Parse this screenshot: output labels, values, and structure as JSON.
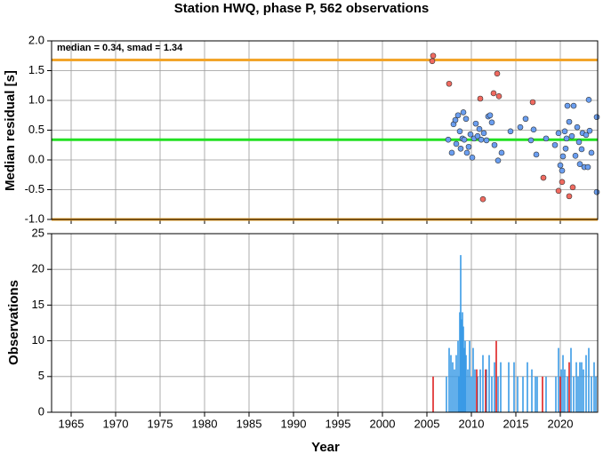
{
  "chart_data": [
    {
      "type": "scatter",
      "title": "Station HWQ, phase P, 562 observations",
      "ylabel": "Median residual [s]",
      "annotation": "median = 0.34, smad = 1.34",
      "xlim": [
        1962.8,
        2024.2
      ],
      "xticks": [
        1965,
        1970,
        1975,
        1980,
        1985,
        1990,
        1995,
        2000,
        2005,
        2010,
        2015,
        2020
      ],
      "ylim": [
        -1.0,
        2.0
      ],
      "yticks": [
        {
          "value": -1.0,
          "label": "-1.0"
        },
        -0.5,
        {
          "value": 0.0,
          "label": "0.0"
        },
        0.5,
        {
          "value": 1.0,
          "label": "1.0"
        },
        1.5,
        {
          "value": 2.0,
          "label": "2.0"
        }
      ],
      "grid": true,
      "hlines": [
        {
          "value": 1.68,
          "color": "#f2a52a"
        },
        {
          "value": 0.34,
          "color": "#22e022"
        },
        {
          "value": -1.0,
          "color": "#f2a52a"
        }
      ],
      "series": [
        {
          "color": "#6a9ef0",
          "x": [
            2007.4,
            2007.8,
            2008,
            2008.2,
            2008.3,
            2008.5,
            2008.7,
            2008.8,
            2009,
            2009.1,
            2009.2,
            2009.4,
            2009.5,
            2009.7,
            2009.9,
            2010.1,
            2010.3,
            2010.5,
            2010.7,
            2010.9,
            2011.1,
            2011.4,
            2011.7,
            2011.9,
            2012.1,
            2012.3,
            2012.6,
            2013,
            2013.4,
            2014.4,
            2015.5,
            2016.1,
            2016.7,
            2017,
            2017.3,
            2018.4,
            2019.4,
            2019.8,
            2020,
            2020.2,
            2020.3,
            2020.5,
            2020.6,
            2020.7,
            2020.8,
            2021,
            2021.3,
            2021.5,
            2021.7,
            2021.9,
            2022.1,
            2022.2,
            2022.4,
            2022.5,
            2022.7,
            2022.9,
            2023.1,
            2023.2,
            2023.3,
            2023.5,
            2024.1,
            2024.1
          ],
          "values": [
            0.34,
            0.12,
            0.6,
            0.67,
            0.27,
            0.75,
            0.48,
            0.19,
            0.36,
            0.8,
            0.34,
            0.69,
            0.12,
            0.22,
            0.43,
            0.04,
            0.36,
            0.61,
            0.4,
            0.52,
            0.34,
            0.45,
            0.33,
            0.73,
            0.75,
            0.63,
            0.25,
            -0.01,
            0.12,
            0.48,
            0.55,
            0.69,
            0.33,
            0.51,
            0.09,
            0.36,
            0.25,
            0.45,
            -0.09,
            -0.18,
            0.06,
            0.48,
            0.19,
            0.36,
            0.91,
            0.64,
            0.4,
            0.91,
            0.07,
            0.55,
            0.3,
            -0.07,
            0.18,
            0.45,
            -0.12,
            0.42,
            -0.12,
            1.01,
            0.49,
            0.12,
            0.72,
            -0.54
          ]
        },
        {
          "color": "#f06a60",
          "x": [
            2005.7,
            2005.6,
            2007.5,
            2011.0,
            2012.5,
            2012.9,
            2013.1,
            2011.3,
            2016.9,
            2018.1,
            2019.8,
            2020.2,
            2021.0,
            2021.4
          ],
          "values": [
            1.75,
            1.66,
            1.28,
            1.03,
            1.12,
            1.45,
            1.07,
            -0.66,
            0.97,
            -0.3,
            -0.52,
            -0.37,
            -0.61,
            -0.46
          ]
        }
      ]
    },
    {
      "type": "bar",
      "xlabel": "Year",
      "ylabel": "Observations",
      "xlim": [
        1962.8,
        2024.2
      ],
      "xticks": [
        1965,
        1970,
        1975,
        1980,
        1985,
        1990,
        1995,
        2000,
        2005,
        2010,
        2015,
        2020
      ],
      "ylim": [
        0,
        25
      ],
      "yticks": [
        0,
        5,
        10,
        15,
        20,
        25
      ],
      "grid": true,
      "series": [
        {
          "color": "#3a9be6",
          "x": [
            2007.2,
            2007.5,
            2007.7,
            2007.9,
            2008.1,
            2008.3,
            2008.5,
            2008.6,
            2008.7,
            2008.8,
            2008.9,
            2009.0,
            2009.1,
            2009.2,
            2009.3,
            2009.4,
            2009.6,
            2009.8,
            2010.0,
            2010.2,
            2010.4,
            2010.7,
            2011.0,
            2011.3,
            2011.7,
            2012.0,
            2012.3,
            2012.6,
            2013.0,
            2013.3,
            2014.2,
            2014.8,
            2015.2,
            2015.8,
            2016.3,
            2016.8,
            2017.2,
            2017.4,
            2018.4,
            2019.5,
            2019.8,
            2020.1,
            2020.3,
            2020.5,
            2020.8,
            2021.2,
            2021.5,
            2021.8,
            2022.0,
            2022.2,
            2022.4,
            2022.6,
            2022.9,
            2023.2,
            2023.5,
            2023.8,
            2024.0
          ],
          "values": [
            5,
            9,
            8,
            7,
            6,
            8,
            10,
            5,
            14,
            22,
            13,
            14,
            12,
            9,
            10,
            8,
            6,
            10,
            5,
            9,
            6,
            5,
            6,
            8,
            6,
            8,
            5,
            7,
            5,
            7,
            7,
            7,
            5,
            5,
            7,
            6,
            5,
            5,
            5,
            5,
            9,
            6,
            8,
            6,
            5,
            9,
            5,
            7,
            5,
            7,
            7,
            6,
            8,
            9,
            5,
            7,
            5
          ]
        },
        {
          "color": "#dd2020",
          "x": [
            2005.7,
            2010.6,
            2011.6,
            2012.8,
            2018.0,
            2020.0,
            2021.0
          ],
          "values": [
            5,
            6,
            6,
            10,
            5,
            5,
            7
          ]
        }
      ]
    }
  ]
}
